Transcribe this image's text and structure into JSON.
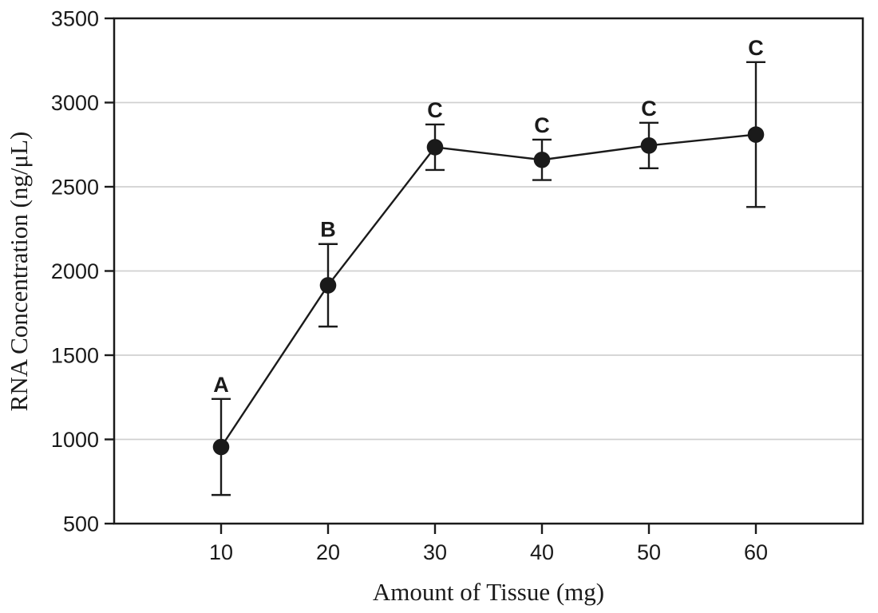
{
  "chart_data": {
    "type": "line",
    "title": "",
    "xlabel": "Amount of Tissue (mg)",
    "ylabel": "RNA Concentration (ng/μL)",
    "x": [
      10,
      20,
      30,
      40,
      50,
      60
    ],
    "y": [
      955,
      1915,
      2735,
      2660,
      2745,
      2810
    ],
    "yerr": [
      285,
      245,
      135,
      120,
      135,
      430
    ],
    "point_labels": [
      "A",
      "B",
      "C",
      "C",
      "C",
      "C"
    ],
    "xlim": [
      0,
      70
    ],
    "ylim": [
      500,
      3500
    ],
    "xticks": [
      10,
      20,
      30,
      40,
      50,
      60
    ],
    "yticks": [
      500,
      1000,
      1500,
      2000,
      2500,
      3000,
      3500
    ],
    "grid": "horizontal-only",
    "legend": "none",
    "marker": "filled-circle",
    "colors": {
      "line": "#1a1a1a",
      "marker": "#1a1a1a",
      "error_bar": "#1a1a1a",
      "frame": "#1a1a1a",
      "grid": "#d0d0d0",
      "text": "#1a1a1a",
      "background": "#ffffff"
    }
  }
}
